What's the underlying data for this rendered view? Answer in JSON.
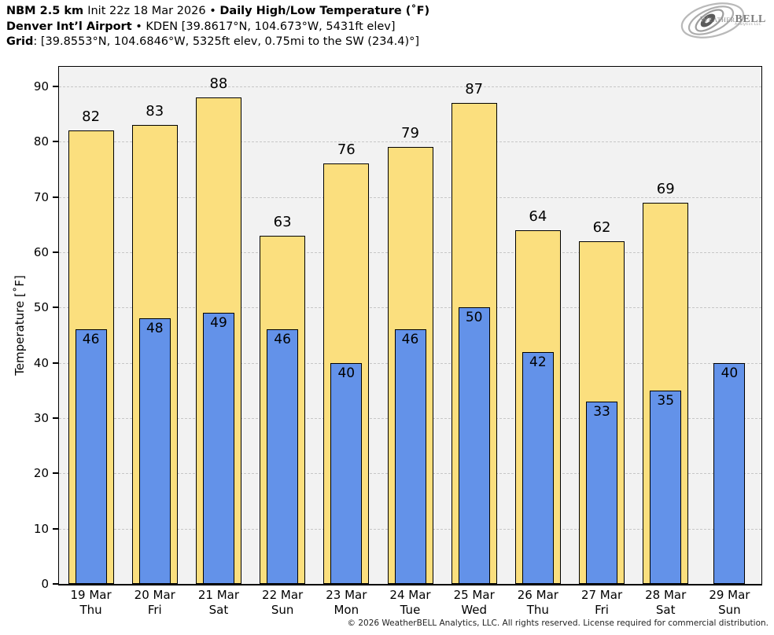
{
  "header": {
    "line1": [
      {
        "text": "NBM 2.5 km ",
        "bold": true
      },
      {
        "text": "Init 22z 18 Mar 2026 • ",
        "bold": false
      },
      {
        "text": "Daily High/Low Temperature (˚F)",
        "bold": true
      }
    ],
    "line2": [
      {
        "text": "Denver Int’l Airport",
        "bold": true
      },
      {
        "text": " • KDEN [39.8617°N, 104.673°W, 5431ft elev]",
        "bold": false
      }
    ],
    "line3": [
      {
        "text": "Grid",
        "bold": true
      },
      {
        "text": ": [39.8553°N, 104.6846°W, 5325ft elev, 0.75mi to the SW (234.4)°]",
        "bold": false
      }
    ]
  },
  "logo": {
    "word_weather": "Weather",
    "word_bell": "BELL",
    "subtext": "Analytics LLC"
  },
  "chart_data": {
    "type": "bar",
    "title": "NBM 2.5 km Init 22z 18 Mar 2026 • Daily High/Low Temperature (°F)",
    "xlabel": "",
    "ylabel": "Temperature [˚F]",
    "ylim": [
      0,
      93.55
    ],
    "yticks": [
      0,
      10,
      20,
      30,
      40,
      50,
      60,
      70,
      80,
      90
    ],
    "grid": "horizontal dash-dot",
    "legend_position": "none",
    "categories": [
      {
        "date": "19 Mar",
        "day": "Thu"
      },
      {
        "date": "20 Mar",
        "day": "Fri"
      },
      {
        "date": "21 Mar",
        "day": "Sat"
      },
      {
        "date": "22 Mar",
        "day": "Sun"
      },
      {
        "date": "23 Mar",
        "day": "Mon"
      },
      {
        "date": "24 Mar",
        "day": "Tue"
      },
      {
        "date": "25 Mar",
        "day": "Wed"
      },
      {
        "date": "26 Mar",
        "day": "Thu"
      },
      {
        "date": "27 Mar",
        "day": "Fri"
      },
      {
        "date": "28 Mar",
        "day": "Sat"
      },
      {
        "date": "29 Mar",
        "day": "Sun"
      }
    ],
    "series": [
      {
        "name": "Daily High",
        "color": "#fbdf7e",
        "values": [
          82,
          83,
          88,
          63,
          76,
          79,
          87,
          64,
          62,
          69,
          null
        ]
      },
      {
        "name": "Daily Low",
        "color": "#6392e9",
        "values": [
          46,
          48,
          49,
          46,
          40,
          46,
          50,
          42,
          33,
          35,
          40
        ]
      }
    ]
  },
  "colors": {
    "plot_background": "#f2f2f2",
    "gridline": "#c7c7c7",
    "bar_border": "#000000",
    "high_fill": "#fbdf7e",
    "low_fill": "#6392e9"
  },
  "footer": {
    "text": "© 2026 WeatherBELL Analytics, LLC. All rights reserved. License required for commercial distribution."
  }
}
